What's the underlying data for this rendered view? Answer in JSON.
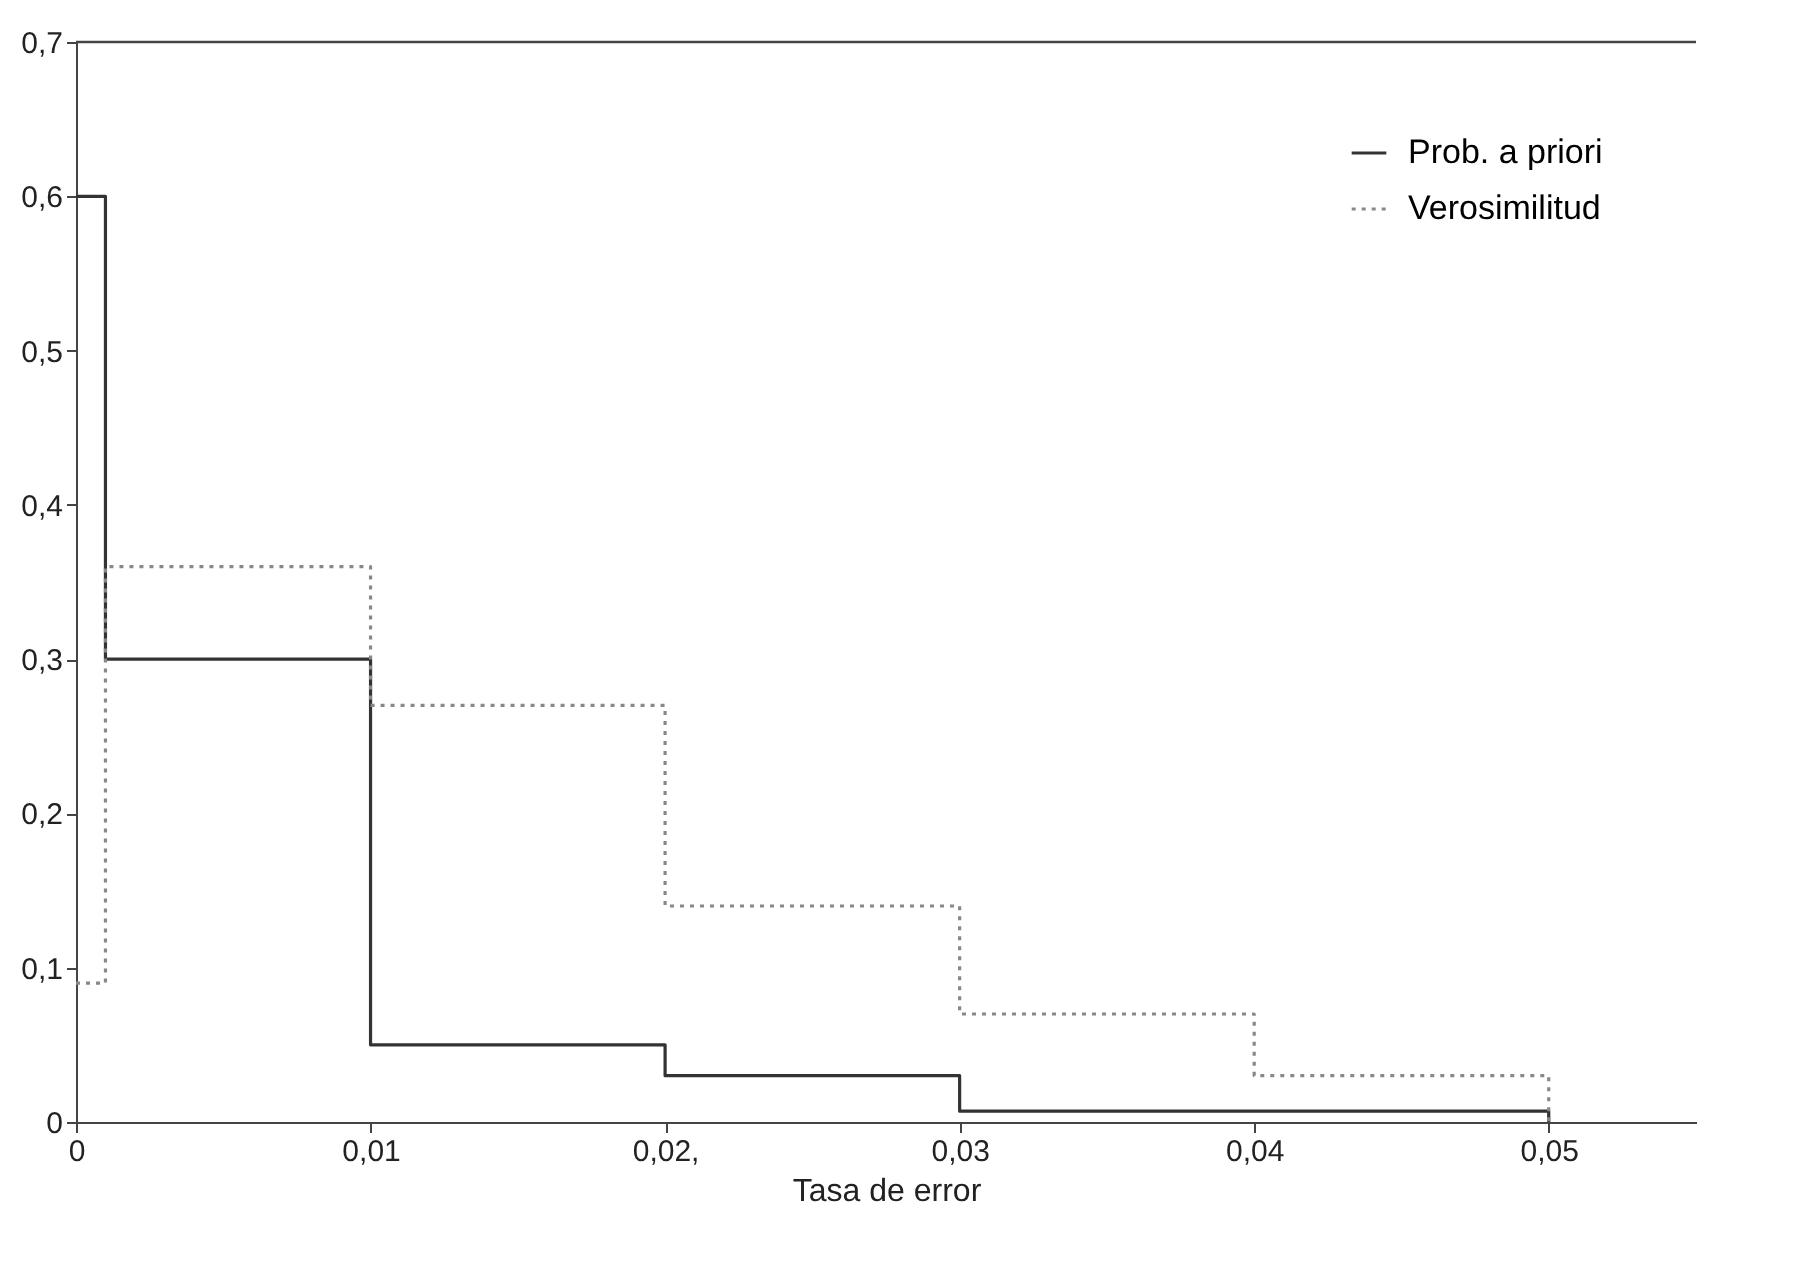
{
  "chart_data": {
    "type": "step",
    "xlabel": "Tasa de error",
    "xlim": [
      0,
      0.055
    ],
    "ylim": [
      0,
      0.7
    ],
    "xticks": [
      0,
      {
        "value": 0.01,
        "label": "0,01"
      },
      {
        "value": 0.02,
        "label": "0,02,"
      },
      {
        "value": 0.03,
        "label": "0,03"
      },
      {
        "value": 0.04,
        "label": "0,04"
      },
      {
        "value": 0.05,
        "label": "0,05"
      }
    ],
    "yticks": [
      0,
      {
        "value": 0.1,
        "label": "0,1"
      },
      {
        "value": 0.2,
        "label": "0,2"
      },
      {
        "value": 0.3,
        "label": "0,3"
      },
      {
        "value": 0.4,
        "label": "0,4"
      },
      {
        "value": 0.5,
        "label": "0,5"
      },
      {
        "value": 0.6,
        "label": "0,6"
      },
      {
        "value": 0.7,
        "label": "0,7"
      }
    ],
    "x": [
      0,
      0.001,
      0.01,
      0.02,
      0.03,
      0.04,
      0.05
    ],
    "series": [
      {
        "name": "Prob. a priori",
        "color": "#333333",
        "line_style": "solid",
        "values": [
          0.6,
          0.3,
          0.05,
          0.03,
          0.007,
          0.007,
          0
        ]
      },
      {
        "name": "Verosimilitud",
        "color": "#888888",
        "line_style": "dotted",
        "values": [
          0.09,
          0.36,
          0.27,
          0.14,
          0.07,
          0.03,
          0
        ]
      }
    ],
    "legend": "top right",
    "grid": false
  }
}
